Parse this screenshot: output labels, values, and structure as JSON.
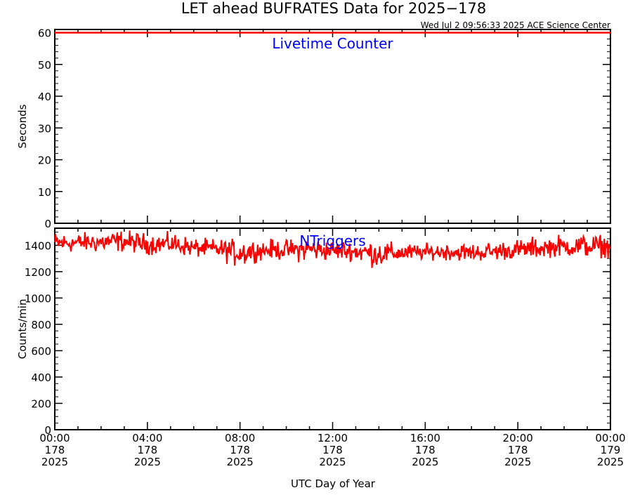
{
  "title": "LET ahead BUFRATES Data for 2025−178",
  "timestamp": "Wed Jul  2 09:56:33 2025 ACE Science Center",
  "x_axis_label": "UTC Day of Year",
  "x_ticks": [
    {
      "time": "00:00",
      "day": "178",
      "year": "2025"
    },
    {
      "time": "04:00",
      "day": "178",
      "year": "2025"
    },
    {
      "time": "08:00",
      "day": "178",
      "year": "2025"
    },
    {
      "time": "12:00",
      "day": "178",
      "year": "2025"
    },
    {
      "time": "16:00",
      "day": "178",
      "year": "2025"
    },
    {
      "time": "20:00",
      "day": "178",
      "year": "2025"
    },
    {
      "time": "00:00",
      "day": "179",
      "year": "2025"
    }
  ],
  "colors": {
    "line": "#ff0000",
    "panel_title": "#0000ff",
    "axes": "#000000"
  },
  "chart_data": [
    {
      "type": "line",
      "title": "Livetime Counter",
      "ylabel": "Seconds",
      "xlim": [
        0,
        24
      ],
      "x_units": "hours UTC, day 178 of 2025",
      "ylim": [
        0,
        61
      ],
      "yticks": [
        0,
        10,
        20,
        30,
        40,
        50,
        60
      ],
      "series": [
        {
          "x": [
            0,
            24
          ],
          "y": [
            60,
            60
          ]
        }
      ]
    },
    {
      "type": "line",
      "title": "NTriggers",
      "ylabel": "Counts/min",
      "xlim": [
        0,
        24
      ],
      "x_units": "hours UTC, day 178 of 2025",
      "ylim": [
        0,
        1530
      ],
      "yticks": [
        0,
        200,
        400,
        600,
        800,
        1000,
        1200,
        1400
      ],
      "series": [
        {
          "x": [
            0,
            1,
            2,
            3,
            4,
            5,
            6,
            7,
            8,
            9,
            10,
            11,
            12,
            13,
            14,
            15,
            16,
            17,
            18,
            19,
            20,
            21,
            22,
            23,
            24
          ],
          "y": [
            1415,
            1420,
            1425,
            1430,
            1405,
            1410,
            1380,
            1370,
            1355,
            1360,
            1365,
            1375,
            1360,
            1350,
            1345,
            1340,
            1345,
            1350,
            1340,
            1350,
            1360,
            1375,
            1385,
            1390,
            1385
          ],
          "y_min": [
            1330,
            1340,
            1335,
            1345,
            1325,
            1330,
            1305,
            1295,
            1210,
            1290,
            1280,
            1260,
            1285,
            1270,
            1210,
            1275,
            1285,
            1280,
            1275,
            1280,
            1290,
            1300,
            1310,
            1300,
            1300
          ],
          "y_max": [
            1510,
            1500,
            1510,
            1525,
            1495,
            1510,
            1460,
            1455,
            1450,
            1450,
            1450,
            1460,
            1440,
            1450,
            1440,
            1420,
            1420,
            1430,
            1420,
            1440,
            1455,
            1475,
            1490,
            1500,
            1480
          ]
        }
      ]
    }
  ]
}
